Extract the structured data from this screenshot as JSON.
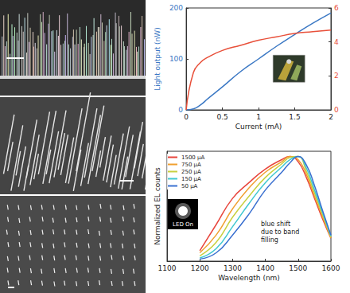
{
  "chart_data": [
    {
      "type": "line",
      "xlabel": "Current (mA)",
      "ylabel": "Light output (nW)",
      "x": [
        0,
        0.1,
        0.2,
        0.3,
        0.5,
        0.75,
        1,
        1.25,
        1.5,
        1.75,
        2
      ],
      "series": [
        {
          "color": "#3b78c4",
          "values": [
            0,
            2,
            10,
            22,
            45,
            75,
            100,
            125,
            148,
            170,
            190
          ]
        },
        {
          "color": "#e8503a",
          "axis": "y2",
          "values": [
            0,
            2.2,
            2.8,
            3.1,
            3.5,
            3.8,
            4.1,
            4.3,
            4.5,
            4.6,
            4.7
          ]
        }
      ],
      "xlim": [
        0,
        2
      ],
      "xticks": [
        0,
        0.5,
        1,
        1.5,
        2
      ],
      "ylim": [
        0,
        200
      ],
      "yticks": [
        0,
        100,
        200
      ],
      "y2lim": [
        0,
        6
      ],
      "y2ticks": [
        0,
        2,
        4,
        6
      ],
      "grid": false
    },
    {
      "type": "line",
      "xlabel": "Wavelength (nm)",
      "ylabel": "Normalized EL counts",
      "annotations": [
        "blue shift due to band filling",
        "LED On"
      ],
      "x": [
        1200,
        1250,
        1300,
        1350,
        1400,
        1450,
        1475,
        1500,
        1525,
        1550,
        1575,
        1600
      ],
      "series": [
        {
          "name": "1500 μA",
          "color": "#e8453c",
          "values": [
            0.1,
            0.35,
            0.6,
            0.75,
            0.88,
            0.97,
            1.0,
            0.95,
            0.8,
            0.6,
            0.4,
            0.22
          ]
        },
        {
          "name": "750 μA",
          "color": "#f0a030",
          "values": [
            0.08,
            0.25,
            0.5,
            0.7,
            0.85,
            0.95,
            1.0,
            0.97,
            0.83,
            0.62,
            0.42,
            0.22
          ]
        },
        {
          "name": "250 μA",
          "color": "#c8d040",
          "values": [
            0.05,
            0.18,
            0.42,
            0.62,
            0.8,
            0.93,
            0.99,
            1.0,
            0.86,
            0.65,
            0.44,
            0.23
          ]
        },
        {
          "name": "150 μA",
          "color": "#40c8d0",
          "values": [
            0.03,
            0.12,
            0.33,
            0.55,
            0.75,
            0.9,
            0.97,
            1.0,
            0.89,
            0.68,
            0.46,
            0.24
          ]
        },
        {
          "name": "50 μA",
          "color": "#3a70d0",
          "values": [
            0.02,
            0.08,
            0.25,
            0.45,
            0.68,
            0.85,
            0.94,
            1.0,
            0.92,
            0.72,
            0.48,
            0.25
          ]
        }
      ],
      "xlim": [
        1100,
        1600
      ],
      "xticks": [
        1100,
        1200,
        1300,
        1400,
        1500,
        1600
      ],
      "ylim": [
        0,
        1.05
      ],
      "tick_labels": "x",
      "legend": "upper left",
      "grid": false
    }
  ]
}
